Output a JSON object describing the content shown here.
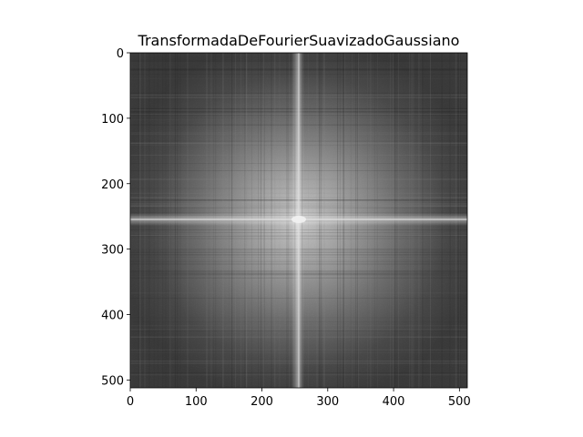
{
  "chart_data": {
    "type": "heatmap",
    "title": "TransformadaDeFourierSuavizadoGaussiano",
    "xlabel": "",
    "ylabel": "",
    "xlim": [
      0,
      512
    ],
    "ylim": [
      512,
      0
    ],
    "x_ticks": [
      0,
      100,
      200,
      300,
      400,
      500
    ],
    "y_ticks": [
      0,
      100,
      200,
      300,
      400,
      500
    ],
    "image_size": [
      512,
      512
    ],
    "colormap": "gray",
    "peak_center": [
      256,
      256
    ],
    "grid": false,
    "legend": "none"
  },
  "colors": {
    "background": "#ffffff",
    "spectrum_dark": "#2b2b2b",
    "spectrum_bright": "#cfcfcf",
    "axis": "#000000"
  }
}
